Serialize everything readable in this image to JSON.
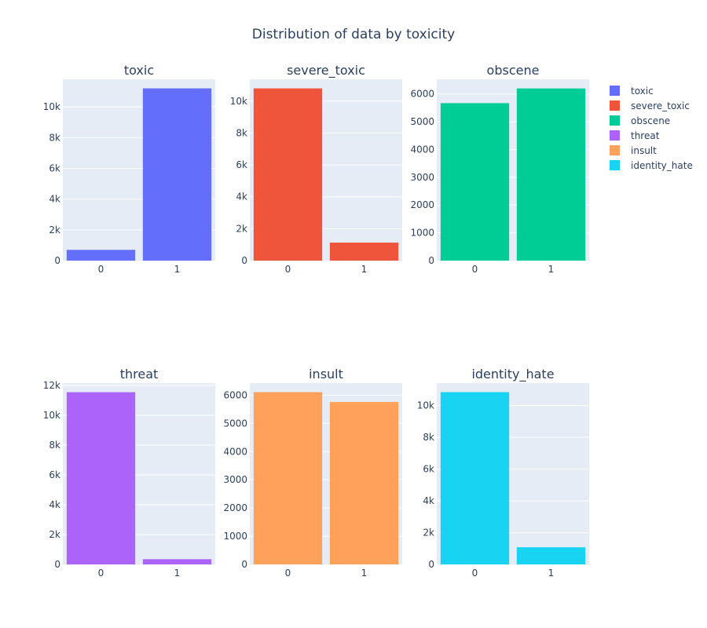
{
  "chart_data": {
    "title": "Distribution of data by toxicity",
    "type": "bar",
    "legend_position": "right",
    "subplots": [
      {
        "title": "toxic",
        "series_name": "toxic",
        "color": "#636efa",
        "categories": [
          "0",
          "1"
        ],
        "values": [
          700,
          11200
        ],
        "ylim": [
          0,
          11790
        ],
        "ticks": [
          0,
          2000,
          4000,
          6000,
          8000,
          10000
        ],
        "tick_labels": [
          "0",
          "2k",
          "4k",
          "6k",
          "8k",
          "10k"
        ]
      },
      {
        "title": "severe_toxic",
        "series_name": "severe_toxic",
        "color": "#EF553B",
        "categories": [
          "0",
          "1"
        ],
        "values": [
          10800,
          1130
        ],
        "ylim": [
          0,
          11370
        ],
        "ticks": [
          0,
          2000,
          4000,
          6000,
          8000,
          10000
        ],
        "tick_labels": [
          "0",
          "2k",
          "4k",
          "6k",
          "8k",
          "10k"
        ]
      },
      {
        "title": "obscene",
        "series_name": "obscene",
        "color": "#00cc96",
        "categories": [
          "0",
          "1"
        ],
        "values": [
          5670,
          6200
        ],
        "ylim": [
          0,
          6530
        ],
        "ticks": [
          0,
          1000,
          2000,
          3000,
          4000,
          5000,
          6000
        ],
        "tick_labels": [
          "0",
          "1000",
          "2000",
          "3000",
          "4000",
          "5000",
          "6000"
        ]
      },
      {
        "title": "threat",
        "series_name": "threat",
        "color": "#ab63fa",
        "categories": [
          "0",
          "1"
        ],
        "values": [
          11550,
          350
        ],
        "ylim": [
          0,
          12160
        ],
        "ticks": [
          0,
          2000,
          4000,
          6000,
          8000,
          10000,
          12000
        ],
        "tick_labels": [
          "0",
          "2k",
          "4k",
          "6k",
          "8k",
          "10k",
          "12k"
        ]
      },
      {
        "title": "insult",
        "series_name": "insult",
        "color": "#FFA15A",
        "categories": [
          "0",
          "1"
        ],
        "values": [
          6110,
          5760
        ],
        "ylim": [
          0,
          6430
        ],
        "ticks": [
          0,
          1000,
          2000,
          3000,
          4000,
          5000,
          6000
        ],
        "tick_labels": [
          "0",
          "1000",
          "2000",
          "3000",
          "4000",
          "5000",
          "6000"
        ]
      },
      {
        "title": "identity_hate",
        "series_name": "identity_hate",
        "color": "#19d3f3",
        "categories": [
          "0",
          "1"
        ],
        "values": [
          10850,
          1080
        ],
        "ylim": [
          0,
          11420
        ],
        "ticks": [
          0,
          2000,
          4000,
          6000,
          8000,
          10000
        ],
        "tick_labels": [
          "0",
          "2k",
          "4k",
          "6k",
          "8k",
          "10k"
        ]
      }
    ]
  }
}
